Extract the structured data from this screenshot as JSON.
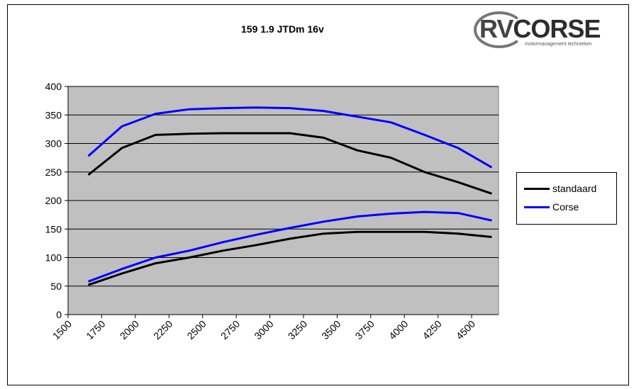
{
  "chart_data": {
    "type": "line",
    "title": "159 1.9 JTDm 16v",
    "xlabel": "",
    "ylabel": "",
    "xlim": [
      1500,
      4700
    ],
    "ylim": [
      0,
      400
    ],
    "x_ticks": [
      "1500",
      "1750",
      "2000",
      "2250",
      "2500",
      "2750",
      "3000",
      "3250",
      "3500",
      "3750",
      "4000",
      "4250",
      "4500"
    ],
    "y_ticks": [
      "0",
      "50",
      "100",
      "150",
      "200",
      "250",
      "300",
      "350",
      "400"
    ],
    "grid": true,
    "legend_position": "right",
    "series": [
      {
        "name": "standaard",
        "group": "power-high",
        "color": "#000000",
        "x": [
          1650,
          1900,
          2150,
          2400,
          2650,
          2900,
          3150,
          3400,
          3650,
          3900,
          4150,
          4400,
          4650
        ],
        "y": [
          245,
          292,
          315,
          317,
          318,
          318,
          318,
          310,
          288,
          275,
          250,
          232,
          212
        ]
      },
      {
        "name": "Corse",
        "group": "power-high",
        "color": "#0000ff",
        "x": [
          1650,
          1900,
          2150,
          2400,
          2650,
          2900,
          3150,
          3400,
          3650,
          3900,
          4150,
          4400,
          4650
        ],
        "y": [
          278,
          330,
          352,
          360,
          362,
          363,
          362,
          357,
          347,
          337,
          315,
          292,
          258
        ]
      },
      {
        "name": "standaard",
        "group": "low",
        "color": "#000000",
        "x": [
          1650,
          1900,
          2150,
          2400,
          2650,
          2900,
          3150,
          3400,
          3650,
          3900,
          4150,
          4400,
          4650
        ],
        "y": [
          52,
          72,
          90,
          100,
          112,
          122,
          133,
          142,
          145,
          145,
          145,
          142,
          136
        ]
      },
      {
        "name": "Corse",
        "group": "low",
        "color": "#0000ff",
        "x": [
          1650,
          1900,
          2150,
          2400,
          2650,
          2900,
          3150,
          3400,
          3650,
          3900,
          4150,
          4400,
          4650
        ],
        "y": [
          58,
          80,
          100,
          112,
          127,
          140,
          152,
          163,
          172,
          177,
          180,
          178,
          165
        ]
      }
    ],
    "legend": [
      {
        "name": "standaard",
        "color": "#000000"
      },
      {
        "name": "Corse",
        "color": "#0000ff"
      }
    ],
    "plot_bg": "#c0c0c0"
  },
  "logo": {
    "text_rv": "RV",
    "text_corse": "CORSE",
    "tagline": "motormanagement technieken"
  }
}
